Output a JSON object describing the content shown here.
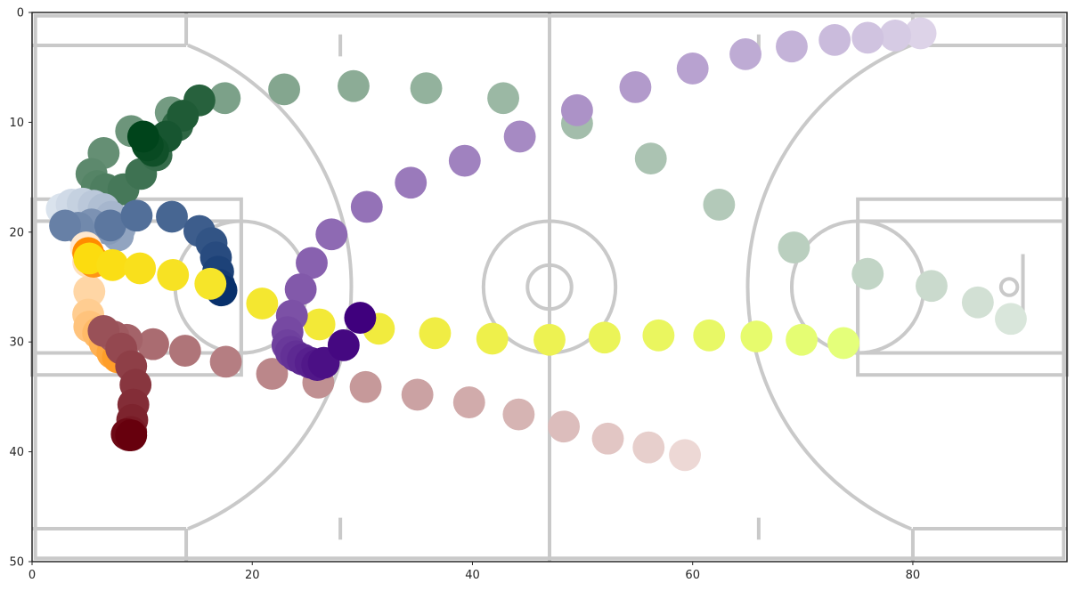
{
  "chart_data": {
    "type": "scatter",
    "title": "",
    "xlabel": "",
    "ylabel": "",
    "xlim": [
      0,
      94
    ],
    "ylim": [
      50,
      0
    ],
    "y_inverted": true,
    "grid": false,
    "background": "basketball-court-image",
    "x_ticks": [
      0,
      20,
      40,
      60,
      80
    ],
    "y_ticks": [
      0,
      10,
      20,
      30,
      40,
      50
    ],
    "series": [
      {
        "color_ramp": [
          "#f7fcf5",
          "#00441b"
        ],
        "points": [
          {
            "x": 88.9,
            "y": 27.9
          },
          {
            "x": 85.9,
            "y": 26.4
          },
          {
            "x": 81.7,
            "y": 24.9
          },
          {
            "x": 75.9,
            "y": 23.8
          },
          {
            "x": 69.2,
            "y": 21.4
          },
          {
            "x": 62.4,
            "y": 17.5
          },
          {
            "x": 56.2,
            "y": 13.3
          },
          {
            "x": 49.5,
            "y": 10.1
          },
          {
            "x": 42.8,
            "y": 7.8
          },
          {
            "x": 35.8,
            "y": 6.9
          },
          {
            "x": 29.2,
            "y": 6.7
          },
          {
            "x": 22.9,
            "y": 7.0
          },
          {
            "x": 17.5,
            "y": 7.8
          },
          {
            "x": 12.6,
            "y": 9.1
          },
          {
            "x": 9.0,
            "y": 10.8
          },
          {
            "x": 6.5,
            "y": 12.8
          },
          {
            "x": 5.4,
            "y": 14.7
          },
          {
            "x": 5.9,
            "y": 15.8
          },
          {
            "x": 6.7,
            "y": 16.1
          },
          {
            "x": 8.3,
            "y": 16.1
          },
          {
            "x": 9.9,
            "y": 14.7
          },
          {
            "x": 11.3,
            "y": 13.0
          },
          {
            "x": 13.2,
            "y": 10.3
          },
          {
            "x": 15.2,
            "y": 8.0
          },
          {
            "x": 13.7,
            "y": 9.4
          },
          {
            "x": 12.2,
            "y": 11.3
          },
          {
            "x": 11.0,
            "y": 12.6
          },
          {
            "x": 10.5,
            "y": 12.1
          },
          {
            "x": 10.1,
            "y": 11.3
          }
        ]
      },
      {
        "color_ramp": [
          "#f7fbff",
          "#08306b"
        ],
        "points": [
          {
            "x": 2.7,
            "y": 17.9
          },
          {
            "x": 3.6,
            "y": 17.5
          },
          {
            "x": 4.6,
            "y": 17.4
          },
          {
            "x": 5.6,
            "y": 17.6
          },
          {
            "x": 6.5,
            "y": 17.9
          },
          {
            "x": 7.2,
            "y": 18.6
          },
          {
            "x": 8.0,
            "y": 19.6
          },
          {
            "x": 7.8,
            "y": 20.3
          },
          {
            "x": 6.9,
            "y": 19.7
          },
          {
            "x": 5.4,
            "y": 19.3
          },
          {
            "x": 4.2,
            "y": 19.6
          },
          {
            "x": 3.0,
            "y": 19.4
          },
          {
            "x": 7.1,
            "y": 19.4
          },
          {
            "x": 9.5,
            "y": 18.5
          },
          {
            "x": 12.7,
            "y": 18.6
          },
          {
            "x": 15.2,
            "y": 19.9
          },
          {
            "x": 16.3,
            "y": 21.0
          },
          {
            "x": 16.7,
            "y": 22.3
          },
          {
            "x": 16.9,
            "y": 23.6
          },
          {
            "x": 17.0,
            "y": 24.8
          },
          {
            "x": 17.2,
            "y": 25.3
          }
        ]
      },
      {
        "color_ramp": [
          "#fff5eb",
          "#ff8c00"
        ],
        "points": [
          {
            "x": 4.9,
            "y": 21.4
          },
          {
            "x": 5.1,
            "y": 22.7
          },
          {
            "x": 5.2,
            "y": 25.4
          },
          {
            "x": 5.1,
            "y": 27.5
          },
          {
            "x": 5.2,
            "y": 28.6
          },
          {
            "x": 6.0,
            "y": 29.2
          },
          {
            "x": 6.6,
            "y": 30.1
          },
          {
            "x": 7.3,
            "y": 31.0
          },
          {
            "x": 7.8,
            "y": 31.4
          },
          {
            "x": 5.6,
            "y": 22.7
          },
          {
            "x": 5.1,
            "y": 21.9
          }
        ]
      },
      {
        "color_ramp": [
          "#ffd700",
          "#e4ff7a"
        ],
        "points": [
          {
            "x": 5.2,
            "y": 22.4
          },
          {
            "x": 7.3,
            "y": 23.0
          },
          {
            "x": 9.8,
            "y": 23.3
          },
          {
            "x": 12.8,
            "y": 23.9
          },
          {
            "x": 16.2,
            "y": 24.7
          },
          {
            "x": 20.9,
            "y": 26.5
          },
          {
            "x": 26.1,
            "y": 28.4
          },
          {
            "x": 31.5,
            "y": 28.8
          },
          {
            "x": 36.6,
            "y": 29.2
          },
          {
            "x": 41.8,
            "y": 29.7
          },
          {
            "x": 47.0,
            "y": 29.8
          },
          {
            "x": 52.0,
            "y": 29.6
          },
          {
            "x": 56.9,
            "y": 29.4
          },
          {
            "x": 61.5,
            "y": 29.4
          },
          {
            "x": 65.8,
            "y": 29.5
          },
          {
            "x": 69.9,
            "y": 29.8
          },
          {
            "x": 73.7,
            "y": 30.1
          }
        ]
      },
      {
        "color_ramp": [
          "#fff5f0",
          "#67000d"
        ],
        "points": [
          {
            "x": 59.3,
            "y": 40.3
          },
          {
            "x": 56.0,
            "y": 39.6
          },
          {
            "x": 52.3,
            "y": 38.8
          },
          {
            "x": 48.3,
            "y": 37.7
          },
          {
            "x": 44.2,
            "y": 36.6
          },
          {
            "x": 39.7,
            "y": 35.5
          },
          {
            "x": 35.0,
            "y": 34.8
          },
          {
            "x": 30.3,
            "y": 34.1
          },
          {
            "x": 26.0,
            "y": 33.7
          },
          {
            "x": 21.8,
            "y": 32.9
          },
          {
            "x": 17.6,
            "y": 31.8
          },
          {
            "x": 13.9,
            "y": 30.8
          },
          {
            "x": 11.0,
            "y": 30.2
          },
          {
            "x": 8.6,
            "y": 29.8
          },
          {
            "x": 7.4,
            "y": 29.5
          },
          {
            "x": 6.5,
            "y": 29.0
          },
          {
            "x": 8.1,
            "y": 30.6
          },
          {
            "x": 9.0,
            "y": 32.2
          },
          {
            "x": 9.4,
            "y": 33.9
          },
          {
            "x": 9.2,
            "y": 35.7
          },
          {
            "x": 9.1,
            "y": 37.1
          },
          {
            "x": 9.0,
            "y": 38.2
          },
          {
            "x": 8.8,
            "y": 38.5
          },
          {
            "x": 8.6,
            "y": 38.4
          },
          {
            "x": 9.0,
            "y": 38.5
          }
        ]
      },
      {
        "color_ramp": [
          "#f2f0f7",
          "#3f007d"
        ],
        "points": [
          {
            "x": 80.7,
            "y": 1.9
          },
          {
            "x": 78.4,
            "y": 2.1
          },
          {
            "x": 75.9,
            "y": 2.3
          },
          {
            "x": 72.9,
            "y": 2.5
          },
          {
            "x": 69.0,
            "y": 3.1
          },
          {
            "x": 64.8,
            "y": 3.8
          },
          {
            "x": 60.0,
            "y": 5.1
          },
          {
            "x": 54.8,
            "y": 6.8
          },
          {
            "x": 49.5,
            "y": 8.9
          },
          {
            "x": 44.3,
            "y": 11.3
          },
          {
            "x": 39.3,
            "y": 13.5
          },
          {
            "x": 34.4,
            "y": 15.5
          },
          {
            "x": 30.4,
            "y": 17.7
          },
          {
            "x": 27.2,
            "y": 20.2
          },
          {
            "x": 25.4,
            "y": 22.8
          },
          {
            "x": 24.4,
            "y": 25.2
          },
          {
            "x": 23.6,
            "y": 27.6
          },
          {
            "x": 23.2,
            "y": 29.1
          },
          {
            "x": 23.2,
            "y": 30.3
          },
          {
            "x": 23.5,
            "y": 30.9
          },
          {
            "x": 24.0,
            "y": 31.3
          },
          {
            "x": 24.6,
            "y": 31.6
          },
          {
            "x": 25.3,
            "y": 31.9
          },
          {
            "x": 25.9,
            "y": 32.1
          },
          {
            "x": 26.5,
            "y": 31.9
          },
          {
            "x": 28.3,
            "y": 30.3
          },
          {
            "x": 29.8,
            "y": 27.8
          }
        ]
      }
    ]
  }
}
